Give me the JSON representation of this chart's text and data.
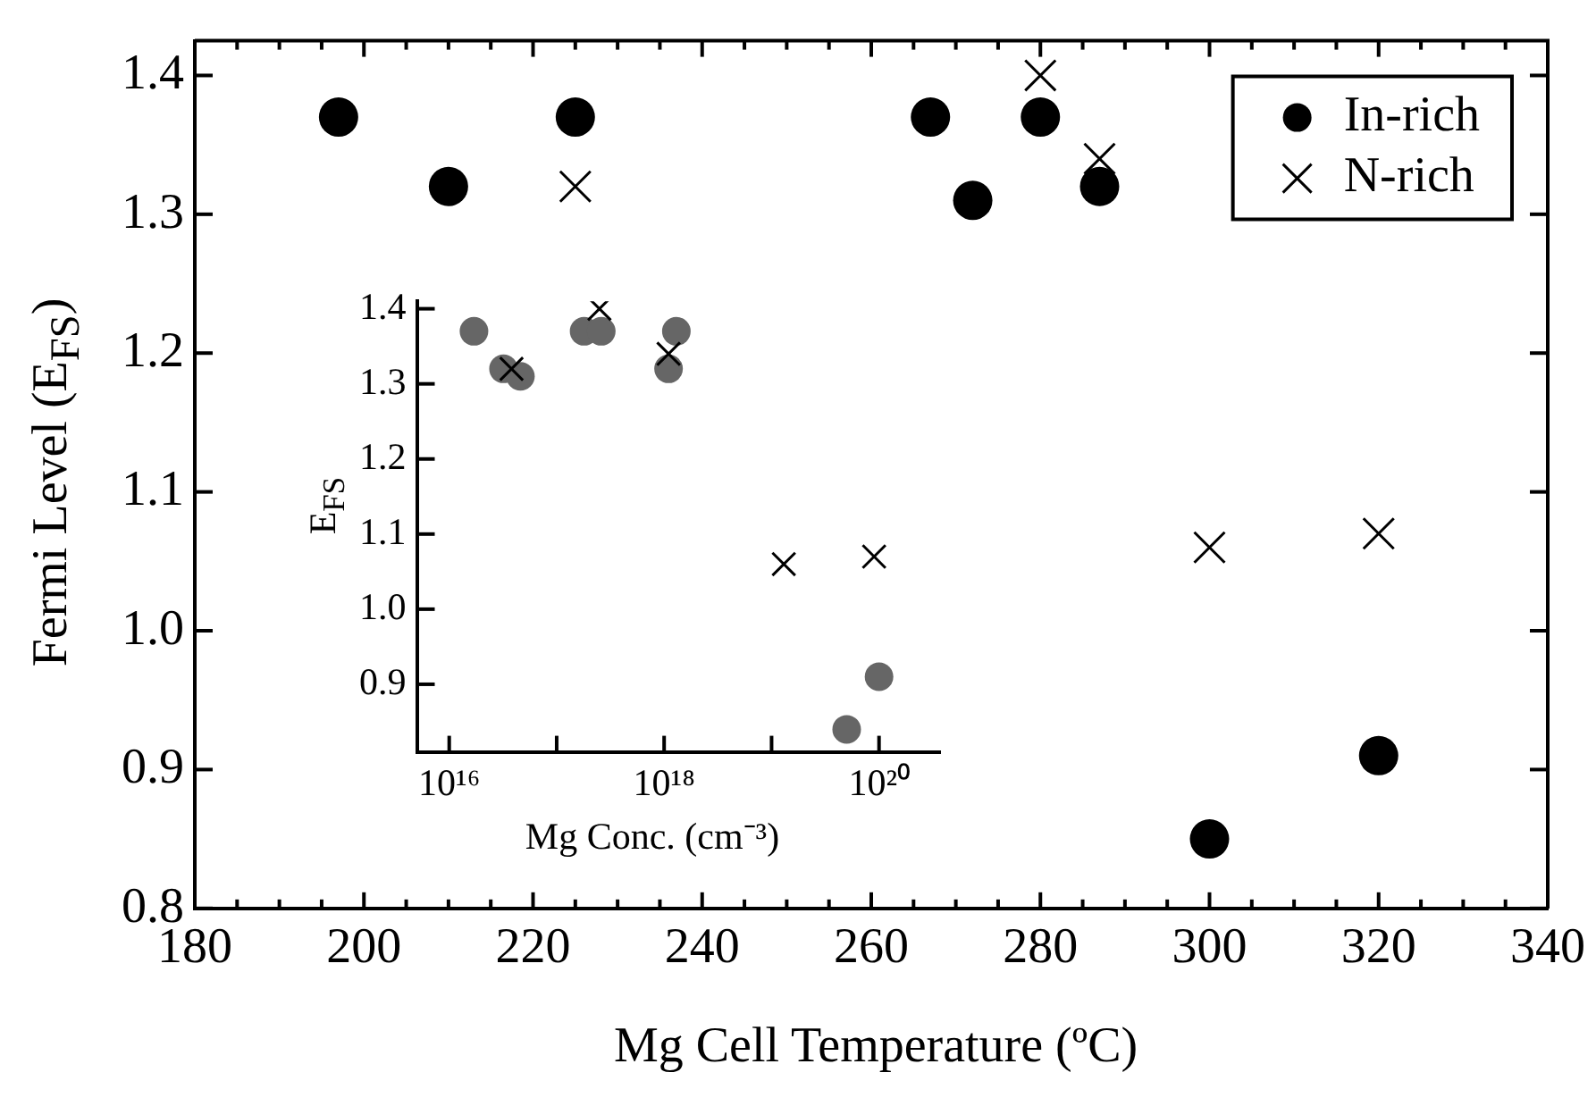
{
  "chart_data": [
    {
      "type": "scatter",
      "xlabel": "Mg Cell Temperature (ºC)",
      "ylabel": "Fermi Level (E$_{FS}$)",
      "xlim": [
        180,
        340
      ],
      "ylim": [
        0.8,
        1.425
      ],
      "xticks": [
        180,
        {
          "value": 185,
          "label": null
        },
        {
          "value": 190,
          "label": null
        },
        {
          "value": 195,
          "label": null
        },
        200,
        {
          "value": 205,
          "label": null
        },
        {
          "value": 210,
          "label": null
        },
        {
          "value": 215,
          "label": null
        },
        220,
        {
          "value": 225,
          "label": null
        },
        {
          "value": 230,
          "label": null
        },
        {
          "value": 235,
          "label": null
        },
        240,
        {
          "value": 245,
          "label": null
        },
        {
          "value": 250,
          "label": null
        },
        {
          "value": 255,
          "label": null
        },
        260,
        {
          "value": 265,
          "label": null
        },
        {
          "value": 270,
          "label": null
        },
        {
          "value": 275,
          "label": null
        },
        280,
        {
          "value": 285,
          "label": null
        },
        {
          "value": 290,
          "label": null
        },
        {
          "value": 295,
          "label": null
        },
        300,
        {
          "value": 305,
          "label": null
        },
        {
          "value": 310,
          "label": null
        },
        {
          "value": 315,
          "label": null
        },
        320,
        {
          "value": 325,
          "label": null
        },
        {
          "value": 330,
          "label": null
        },
        {
          "value": 335,
          "label": null
        },
        340
      ],
      "yticks": [
        {
          "value": 0.8,
          "label": "0.8"
        },
        {
          "value": 0.9,
          "label": "0.9"
        },
        {
          "value": 1.0,
          "label": "1.0"
        },
        {
          "value": 1.1,
          "label": "1.1"
        },
        {
          "value": 1.2,
          "label": "1.2"
        },
        {
          "value": 1.3,
          "label": "1.3"
        },
        {
          "value": 1.4,
          "label": "1.4"
        }
      ],
      "legend": "top right",
      "series": [
        {
          "name": "In-rich",
          "color": "#000000",
          "marker": "circle",
          "x": [
            197,
            210,
            225,
            267,
            272,
            280,
            287,
            300,
            320
          ],
          "values": [
            1.37,
            1.32,
            1.37,
            1.37,
            1.31,
            1.37,
            1.32,
            0.85,
            0.91
          ]
        },
        {
          "name": "N-rich",
          "color": "#000000",
          "marker": "cross",
          "x": [
            225,
            280,
            287,
            300,
            320
          ],
          "values": [
            1.32,
            1.4,
            1.34,
            1.06,
            1.07
          ]
        }
      ]
    },
    {
      "type": "scatter",
      "xlabel": "Mg Conc. (cm⁻³)",
      "ylabel": "E$_{FS}$",
      "log": "x",
      "xlim": [
        5000000000000000.0,
        3.7e+20
      ],
      "ylim": [
        0.81,
        1.41
      ],
      "xticks": [
        {
          "value": 1e+16,
          "label": "10¹⁶"
        },
        {
          "value": 1e+17,
          "label": null
        },
        {
          "value": 1e+18,
          "label": "10¹⁸"
        },
        {
          "value": 1e+19,
          "label": null
        },
        {
          "value": 1e+20,
          "label": "10²⁰"
        }
      ],
      "yticks": [
        {
          "value": 0.9,
          "label": "0.9"
        },
        {
          "value": 1.0,
          "label": "1.0"
        },
        {
          "value": 1.1,
          "label": "1.1"
        },
        {
          "value": 1.2,
          "label": "1.2"
        },
        {
          "value": 1.3,
          "label": "1.3"
        },
        {
          "value": 1.4,
          "label": "1.4"
        }
      ],
      "series": [
        {
          "color": "#666666",
          "marker": "circle",
          "x": [
            1.7e+16,
            3.2e+16,
            4.6e+16,
            1.8e+17,
            2.6e+17,
            1.1e+18,
            1.3e+18,
            5e+19,
            1e+20
          ],
          "values": [
            1.37,
            1.32,
            1.31,
            1.37,
            1.37,
            1.32,
            1.37,
            0.84,
            0.91
          ]
        },
        {
          "color": "#000000",
          "marker": "cross",
          "x": [
            3.8e+16,
            2.5e+17,
            1.1e+18,
            1.3e+19,
            9e+19
          ],
          "values": [
            1.32,
            1.4,
            1.34,
            1.06,
            1.07
          ]
        }
      ]
    }
  ]
}
